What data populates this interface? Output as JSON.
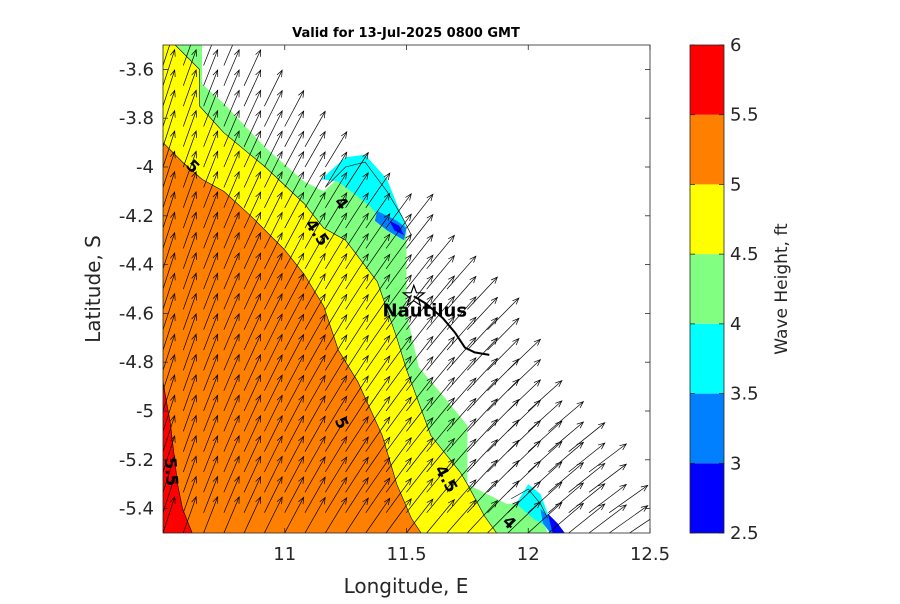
{
  "chart_data": {
    "type": "contour",
    "title": "Valid for 13-Jul-2025 0800 GMT",
    "xlabel": "Longitude, E",
    "ylabel": "Latitude, S",
    "xlim": [
      10.5,
      12.5
    ],
    "ylim": [
      -5.5,
      -3.5
    ],
    "xticks": [
      11,
      11.5,
      12,
      12.5
    ],
    "yticks": [
      -5.4,
      -5.2,
      -5.0,
      -4.8,
      -4.6,
      -4.4,
      -4.2,
      -4.0,
      -3.8,
      -3.6
    ],
    "grid": false,
    "colorbar": {
      "label": "Wave Height, ft",
      "ticks": [
        2.5,
        3,
        3.5,
        4,
        4.5,
        5,
        5.5,
        6
      ],
      "bands": [
        {
          "from": 2.5,
          "to": 3.0,
          "color": "#0000ff"
        },
        {
          "from": 3.0,
          "to": 3.5,
          "color": "#0080ff"
        },
        {
          "from": 3.5,
          "to": 4.0,
          "color": "#00ffff"
        },
        {
          "from": 4.0,
          "to": 4.5,
          "color": "#80ff80"
        },
        {
          "from": 4.5,
          "to": 5.0,
          "color": "#ffff00"
        },
        {
          "from": 5.0,
          "to": 5.5,
          "color": "#ff8000"
        },
        {
          "from": 5.5,
          "to": 6.0,
          "color": "#ff0000"
        }
      ]
    },
    "regions": [
      {
        "level": 4.0,
        "points": [
          [
            10.5,
            -3.5
          ],
          [
            10.66,
            -3.5
          ],
          [
            10.66,
            -3.66
          ],
          [
            10.75,
            -3.74
          ],
          [
            10.92,
            -3.92
          ],
          [
            11.08,
            -4.06
          ],
          [
            11.16,
            -4.1
          ],
          [
            11.33,
            -3.95
          ],
          [
            11.42,
            -4.1
          ],
          [
            11.5,
            -4.25
          ],
          [
            11.5,
            -4.6
          ],
          [
            11.55,
            -4.82
          ],
          [
            11.66,
            -4.95
          ],
          [
            11.75,
            -5.06
          ],
          [
            11.75,
            -5.3
          ],
          [
            11.91,
            -5.38
          ],
          [
            12.03,
            -5.38
          ],
          [
            12.05,
            -5.42
          ],
          [
            12.08,
            -5.5
          ],
          [
            10.5,
            -5.5
          ]
        ]
      },
      {
        "level": 4.5,
        "points": [
          [
            10.5,
            -3.5
          ],
          [
            10.55,
            -3.5
          ],
          [
            10.65,
            -3.6
          ],
          [
            10.65,
            -3.75
          ],
          [
            10.75,
            -3.86
          ],
          [
            10.92,
            -4.0
          ],
          [
            11.08,
            -4.15
          ],
          [
            11.16,
            -4.25
          ],
          [
            11.25,
            -4.3
          ],
          [
            11.38,
            -4.47
          ],
          [
            11.46,
            -4.7
          ],
          [
            11.5,
            -4.83
          ],
          [
            11.6,
            -5.1
          ],
          [
            11.72,
            -5.25
          ],
          [
            11.75,
            -5.3
          ],
          [
            11.82,
            -5.43
          ],
          [
            11.87,
            -5.5
          ],
          [
            10.5,
            -5.5
          ]
        ]
      },
      {
        "level": 5.0,
        "points": [
          [
            10.5,
            -3.9
          ],
          [
            10.58,
            -3.98
          ],
          [
            10.66,
            -4.05
          ],
          [
            10.75,
            -4.1
          ],
          [
            10.86,
            -4.2
          ],
          [
            11.0,
            -4.34
          ],
          [
            11.08,
            -4.44
          ],
          [
            11.16,
            -4.57
          ],
          [
            11.22,
            -4.75
          ],
          [
            11.3,
            -4.88
          ],
          [
            11.4,
            -5.1
          ],
          [
            11.46,
            -5.3
          ],
          [
            11.52,
            -5.44
          ],
          [
            11.56,
            -5.5
          ],
          [
            10.5,
            -5.5
          ]
        ]
      },
      {
        "level": 5.5,
        "points": [
          [
            10.5,
            -4.88
          ],
          [
            10.53,
            -5.05
          ],
          [
            10.56,
            -5.3
          ],
          [
            10.58,
            -5.4
          ],
          [
            10.62,
            -5.5
          ],
          [
            10.5,
            -5.5
          ]
        ]
      }
    ],
    "troughs": [
      {
        "level": 3.5,
        "points": [
          [
            11.15,
            -4.05
          ],
          [
            11.25,
            -3.96
          ],
          [
            11.33,
            -3.95
          ],
          [
            11.42,
            -4.05
          ],
          [
            11.5,
            -4.25
          ],
          [
            11.45,
            -4.28
          ],
          [
            11.35,
            -4.16
          ],
          [
            11.22,
            -4.06
          ]
        ]
      },
      {
        "level": 3.5,
        "points": [
          [
            12.0,
            -5.3
          ],
          [
            12.05,
            -5.34
          ],
          [
            12.08,
            -5.42
          ],
          [
            12.12,
            -5.5
          ],
          [
            12.02,
            -5.44
          ],
          [
            11.95,
            -5.38
          ]
        ]
      },
      {
        "level": 3.0,
        "points": [
          [
            11.38,
            -4.18
          ],
          [
            11.46,
            -4.22
          ],
          [
            11.5,
            -4.25
          ],
          [
            11.49,
            -4.3
          ],
          [
            11.42,
            -4.26
          ],
          [
            11.37,
            -4.22
          ]
        ]
      },
      {
        "level": 3.0,
        "points": [
          [
            12.05,
            -5.4
          ],
          [
            12.09,
            -5.44
          ],
          [
            12.14,
            -5.5
          ],
          [
            12.09,
            -5.5
          ],
          [
            12.06,
            -5.46
          ]
        ]
      },
      {
        "level": 2.5,
        "points": [
          [
            11.43,
            -4.22
          ],
          [
            11.47,
            -4.24
          ],
          [
            11.49,
            -4.28
          ],
          [
            11.45,
            -4.26
          ]
        ]
      },
      {
        "level": 2.5,
        "points": [
          [
            12.08,
            -5.42
          ],
          [
            12.12,
            -5.46
          ],
          [
            12.15,
            -5.5
          ],
          [
            12.1,
            -5.5
          ]
        ]
      }
    ],
    "contour_lines": [
      {
        "level": 5.0,
        "points": [
          [
            10.5,
            -3.9
          ],
          [
            10.58,
            -3.98
          ],
          [
            10.66,
            -4.05
          ],
          [
            10.75,
            -4.1
          ],
          [
            10.86,
            -4.2
          ],
          [
            11.0,
            -4.34
          ],
          [
            11.08,
            -4.44
          ],
          [
            11.16,
            -4.57
          ],
          [
            11.22,
            -4.75
          ],
          [
            11.3,
            -4.88
          ],
          [
            11.4,
            -5.1
          ],
          [
            11.46,
            -5.3
          ],
          [
            11.52,
            -5.44
          ],
          [
            11.56,
            -5.5
          ]
        ]
      },
      {
        "level": 4.5,
        "points": [
          [
            10.55,
            -3.5
          ],
          [
            10.65,
            -3.6
          ],
          [
            10.65,
            -3.75
          ],
          [
            10.75,
            -3.86
          ],
          [
            10.92,
            -4.0
          ],
          [
            11.08,
            -4.15
          ],
          [
            11.16,
            -4.25
          ],
          [
            11.25,
            -4.3
          ],
          [
            11.38,
            -4.47
          ],
          [
            11.46,
            -4.7
          ],
          [
            11.5,
            -4.83
          ],
          [
            11.6,
            -5.1
          ],
          [
            11.72,
            -5.25
          ],
          [
            11.75,
            -5.3
          ],
          [
            11.82,
            -5.43
          ],
          [
            11.87,
            -5.5
          ]
        ]
      },
      {
        "level": 4.0,
        "points": [
          [
            11.17,
            -4.08
          ],
          [
            11.25,
            -4.0
          ],
          [
            11.33,
            -3.98
          ],
          [
            11.42,
            -4.1
          ],
          [
            11.48,
            -4.2
          ],
          [
            11.52,
            -4.28
          ]
        ]
      },
      {
        "level": 4.0,
        "points": [
          [
            11.93,
            -5.36
          ],
          [
            12.0,
            -5.32
          ],
          [
            12.05,
            -5.38
          ],
          [
            12.08,
            -5.44
          ]
        ]
      },
      {
        "level": 5.5,
        "points": [
          [
            10.5,
            -4.88
          ],
          [
            10.53,
            -5.05
          ],
          [
            10.56,
            -5.3
          ],
          [
            10.58,
            -5.4
          ],
          [
            10.62,
            -5.5
          ]
        ]
      }
    ],
    "contour_labels": [
      {
        "text": "5",
        "lon": 10.62,
        "lat": -4.0,
        "angle": 45
      },
      {
        "text": "4.5",
        "lon": 11.13,
        "lat": -4.27,
        "angle": 55
      },
      {
        "text": "4",
        "lon": 11.23,
        "lat": -4.15,
        "angle": 50
      },
      {
        "text": "5",
        "lon": 11.23,
        "lat": -5.05,
        "angle": 65
      },
      {
        "text": "4.5",
        "lon": 11.66,
        "lat": -5.28,
        "angle": 60
      },
      {
        "text": "4",
        "lon": 11.92,
        "lat": -5.46,
        "angle": 45
      },
      {
        "text": "5.5",
        "lon": 10.53,
        "lat": -5.25,
        "angle": 85
      }
    ],
    "vector_field": {
      "lon_start": 10.5,
      "lon_step": 0.0833,
      "lat_start": -5.5,
      "lat_step": 0.0833,
      "u_ref": 1.0,
      "v_ref": 3.2,
      "note_water_mask": [
        [
          10.5,
          -3.5
        ],
        [
          10.66,
          -3.5
        ],
        [
          11.5,
          -4.25
        ],
        [
          11.9,
          -4.75
        ],
        [
          12.05,
          -5.05
        ],
        [
          12.3,
          -5.3
        ],
        [
          12.42,
          -5.5
        ],
        [
          10.5,
          -5.5
        ]
      ]
    },
    "station": {
      "name": "Nautilus",
      "lon": 11.53,
      "lat": -4.53
    },
    "track": [
      [
        11.53,
        -4.53
      ],
      [
        11.58,
        -4.56
      ],
      [
        11.65,
        -4.62
      ],
      [
        11.7,
        -4.68
      ],
      [
        11.74,
        -4.74
      ],
      [
        11.78,
        -4.76
      ],
      [
        11.84,
        -4.77
      ]
    ]
  }
}
